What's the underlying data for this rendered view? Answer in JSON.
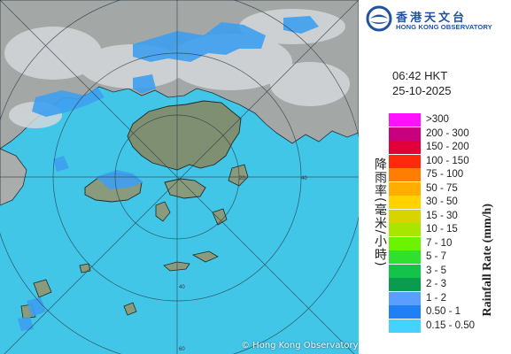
{
  "map": {
    "copyright": "© Hong Kong Observatory",
    "range_ring_labels": [
      "20",
      "40",
      "60"
    ],
    "colors": {
      "sea": "#41c6e8",
      "land": "#8c9a7c",
      "cloud": "#c7cdd3",
      "rain_light": "#3ea0ef",
      "ring": "#2b3a44"
    }
  },
  "logo": {
    "chinese": "香港天文台",
    "english": "HONG KONG OBSERVATORY",
    "icon": "hko-logo-icon",
    "color": "#2053a0"
  },
  "timestamp": {
    "time": "06:42 HKT",
    "date": "25-10-2025"
  },
  "legend": {
    "title_cn": "降雨率(毫米/小時)",
    "title_en": "Rainfall Rate (mm/h)",
    "items": [
      {
        "label": ">300",
        "color": "#ff10ff"
      },
      {
        "label": "200 - 300",
        "color": "#c8007d"
      },
      {
        "label": "150 - 200",
        "color": "#e2003a"
      },
      {
        "label": "100 - 150",
        "color": "#ff2a0a"
      },
      {
        "label": "75 - 100",
        "color": "#ff7e00"
      },
      {
        "label": "50 - 75",
        "color": "#ffae00"
      },
      {
        "label": "30 - 50",
        "color": "#ffd200"
      },
      {
        "label": "15 - 30",
        "color": "#d8d400"
      },
      {
        "label": "10 - 15",
        "color": "#a8e600"
      },
      {
        "label": "7 - 10",
        "color": "#6cf300"
      },
      {
        "label": "5 - 7",
        "color": "#2fe02f"
      },
      {
        "label": "3 - 5",
        "color": "#14c44a"
      },
      {
        "label": "2 - 3",
        "color": "#0a9c4e"
      },
      {
        "label": "1 - 2",
        "color": "#5a9eff"
      },
      {
        "label": "0.50 - 1",
        "color": "#1f7ff5"
      },
      {
        "label": "0.15 - 0.50",
        "color": "#46d2ff"
      }
    ]
  }
}
